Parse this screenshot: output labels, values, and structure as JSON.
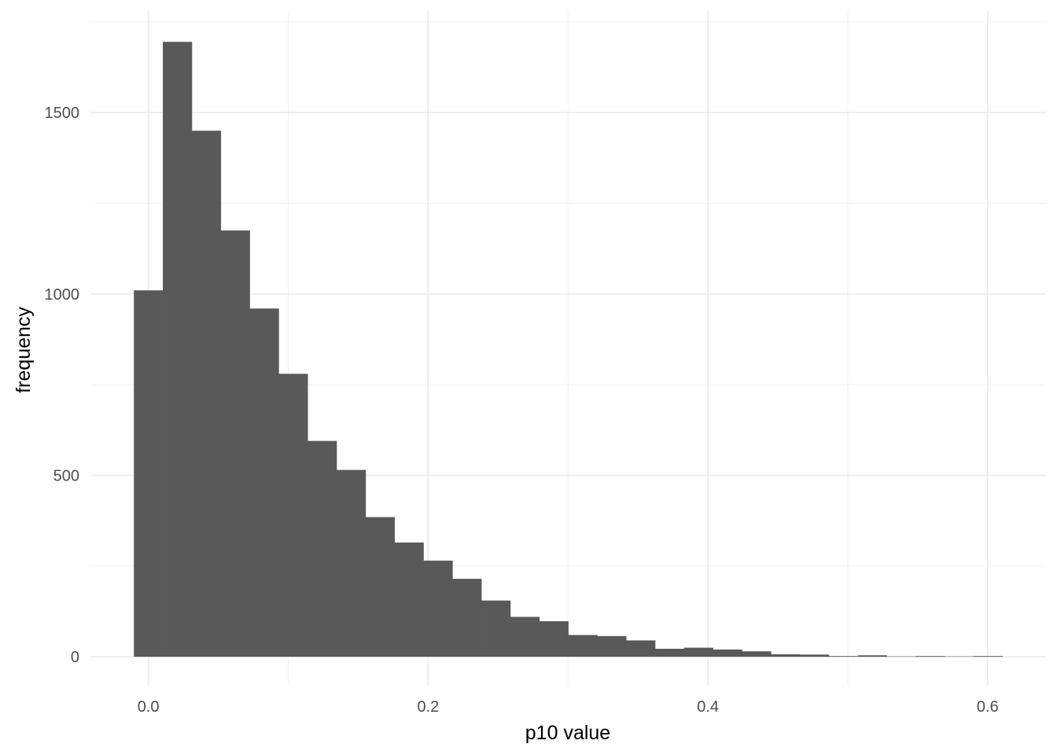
{
  "chart_data": {
    "type": "bar",
    "title": "",
    "xlabel": "p10 value",
    "ylabel": "frequency",
    "bin_width": 0.0207,
    "bins": [
      {
        "x": 0.0,
        "count": 1010
      },
      {
        "x": 0.0207,
        "count": 1695
      },
      {
        "x": 0.0414,
        "count": 1450
      },
      {
        "x": 0.0621,
        "count": 1175
      },
      {
        "x": 0.0828,
        "count": 960
      },
      {
        "x": 0.1035,
        "count": 780
      },
      {
        "x": 0.1242,
        "count": 595
      },
      {
        "x": 0.1449,
        "count": 515
      },
      {
        "x": 0.1656,
        "count": 385
      },
      {
        "x": 0.1863,
        "count": 315
      },
      {
        "x": 0.207,
        "count": 265
      },
      {
        "x": 0.2277,
        "count": 215
      },
      {
        "x": 0.2484,
        "count": 155
      },
      {
        "x": 0.2691,
        "count": 110
      },
      {
        "x": 0.2898,
        "count": 98
      },
      {
        "x": 0.3105,
        "count": 60
      },
      {
        "x": 0.3312,
        "count": 57
      },
      {
        "x": 0.3519,
        "count": 45
      },
      {
        "x": 0.3726,
        "count": 22
      },
      {
        "x": 0.3933,
        "count": 25
      },
      {
        "x": 0.414,
        "count": 20
      },
      {
        "x": 0.4347,
        "count": 15
      },
      {
        "x": 0.4554,
        "count": 7
      },
      {
        "x": 0.4761,
        "count": 6
      },
      {
        "x": 0.4968,
        "count": 2
      },
      {
        "x": 0.5175,
        "count": 4
      },
      {
        "x": 0.5382,
        "count": 1
      },
      {
        "x": 0.5589,
        "count": 2
      },
      {
        "x": 0.5796,
        "count": 1
      },
      {
        "x": 0.6003,
        "count": 2
      }
    ],
    "xlim": [
      -0.0414,
      0.6417
    ],
    "ylim": [
      -80,
      1780
    ],
    "x_ticks": [
      0.0,
      0.2,
      0.4,
      0.6
    ],
    "x_tick_labels": [
      "0.0",
      "0.2",
      "0.4",
      "0.6"
    ],
    "y_ticks": [
      0,
      500,
      1000,
      1500
    ],
    "y_tick_labels": [
      "0",
      "500",
      "1000",
      "1500"
    ],
    "x_minor_ticks": [
      0.1,
      0.3,
      0.5
    ],
    "y_minor_ticks": [
      250,
      750,
      1250,
      1750
    ],
    "grid": true,
    "legend": "none",
    "bar_color": "#595959",
    "background_color": "#ffffff"
  }
}
